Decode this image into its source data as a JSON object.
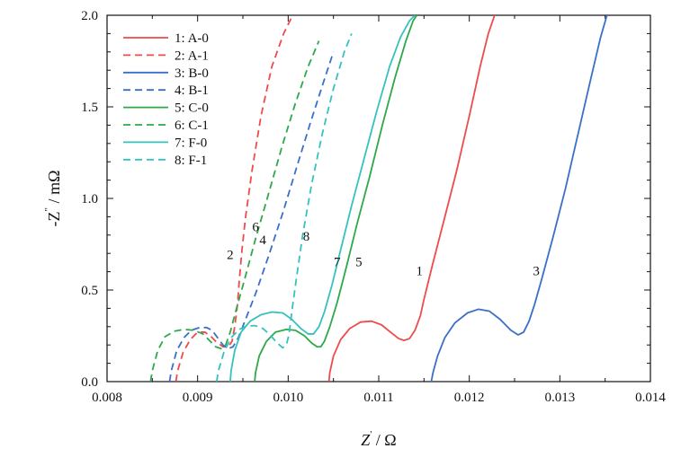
{
  "chart_data": {
    "type": "line",
    "xlabel_main": "Z",
    "xlabel_sup": "'",
    "xlabel_unit": " / Ω",
    "ylabel_main": "-Z",
    "ylabel_sup": "\"",
    "ylabel_unit": " / mΩ",
    "xlim": [
      0.008,
      0.014
    ],
    "ylim": [
      0.0,
      2.0
    ],
    "xticks": [
      "0.008",
      "0.009",
      "0.010",
      "0.011",
      "0.012",
      "0.013",
      "0.014"
    ],
    "yticks": [
      "0.0",
      "0.5",
      "1.0",
      "1.5",
      "2.0"
    ],
    "legend_position": "top-left",
    "series": [
      {
        "name": "1: A-0",
        "color": "#ee4b4b",
        "dash": "solid",
        "curve_label": "1",
        "x": [
          0.01045,
          0.01046,
          0.0105,
          0.01058,
          0.01068,
          0.0108,
          0.01092,
          0.01103,
          0.01113,
          0.01122,
          0.01128,
          0.01134,
          0.0114,
          0.01146,
          0.0115,
          0.0116,
          0.01172,
          0.01186,
          0.012,
          0.01212,
          0.01221,
          0.01228
        ],
        "y": [
          0.0,
          0.05,
          0.14,
          0.23,
          0.29,
          0.325,
          0.33,
          0.31,
          0.27,
          0.235,
          0.225,
          0.235,
          0.28,
          0.36,
          0.45,
          0.65,
          0.88,
          1.15,
          1.45,
          1.72,
          1.9,
          2.0
        ]
      },
      {
        "name": "2: A-1",
        "color": "#ee4b4b",
        "dash": "dashed",
        "curve_label": "2",
        "x": [
          0.00876,
          0.00878,
          0.00884,
          0.00892,
          0.009,
          0.00908,
          0.00914,
          0.0092,
          0.00928,
          0.00934,
          0.00938,
          0.00941,
          0.00944,
          0.00946,
          0.00949,
          0.00953,
          0.0096,
          0.0097,
          0.00982,
          0.00995,
          0.01005
        ],
        "y": [
          0.0,
          0.06,
          0.16,
          0.23,
          0.27,
          0.27,
          0.25,
          0.22,
          0.19,
          0.19,
          0.22,
          0.3,
          0.42,
          0.55,
          0.72,
          0.9,
          1.15,
          1.45,
          1.72,
          1.9,
          2.0
        ]
      },
      {
        "name": "3: B-0",
        "color": "#3a6fc9",
        "dash": "solid",
        "curve_label": "3",
        "x": [
          0.01158,
          0.0116,
          0.01165,
          0.01173,
          0.01184,
          0.01198,
          0.0121,
          0.01222,
          0.01234,
          0.01246,
          0.01254,
          0.0126,
          0.01266,
          0.01272,
          0.0128,
          0.01292,
          0.01306,
          0.0132,
          0.01334,
          0.01345,
          0.01352
        ],
        "y": [
          0.0,
          0.05,
          0.14,
          0.24,
          0.32,
          0.375,
          0.395,
          0.385,
          0.34,
          0.28,
          0.255,
          0.27,
          0.33,
          0.42,
          0.56,
          0.78,
          1.05,
          1.35,
          1.65,
          1.88,
          2.0
        ]
      },
      {
        "name": "4: B-1",
        "color": "#3a6fc9",
        "dash": "dashed",
        "curve_label": "4",
        "x": [
          0.00869,
          0.00871,
          0.00877,
          0.00885,
          0.00893,
          0.00902,
          0.0091,
          0.00916,
          0.00922,
          0.00928,
          0.00934,
          0.00939,
          0.00945,
          0.00953,
          0.00964,
          0.00978,
          0.00994,
          0.0101,
          0.01025,
          0.01038,
          0.0105
        ],
        "y": [
          0.0,
          0.06,
          0.17,
          0.24,
          0.28,
          0.295,
          0.295,
          0.28,
          0.24,
          0.2,
          0.18,
          0.19,
          0.24,
          0.34,
          0.48,
          0.68,
          0.92,
          1.18,
          1.42,
          1.62,
          1.8
        ]
      },
      {
        "name": "5: C-0",
        "color": "#2ea84a",
        "dash": "solid",
        "curve_label": "5",
        "x": [
          0.00963,
          0.00964,
          0.00968,
          0.00976,
          0.00986,
          0.00998,
          0.01008,
          0.01018,
          0.01026,
          0.01032,
          0.01036,
          0.0104,
          0.01046,
          0.01054,
          0.01064,
          0.01076,
          0.0109,
          0.01104,
          0.01118,
          0.0113,
          0.01138,
          0.01142
        ],
        "y": [
          0.0,
          0.05,
          0.14,
          0.22,
          0.27,
          0.285,
          0.28,
          0.25,
          0.21,
          0.19,
          0.19,
          0.22,
          0.3,
          0.43,
          0.62,
          0.86,
          1.12,
          1.4,
          1.66,
          1.86,
          1.97,
          2.0
        ]
      },
      {
        "name": "6: C-1",
        "color": "#2ea84a",
        "dash": "dashed",
        "curve_label": "6",
        "x": [
          0.00848,
          0.0085,
          0.00856,
          0.00864,
          0.00874,
          0.00885,
          0.00896,
          0.00906,
          0.00914,
          0.0092,
          0.00926,
          0.00931,
          0.00936,
          0.00943,
          0.00952,
          0.00964,
          0.00978,
          0.00993,
          0.01008,
          0.01022,
          0.01034
        ],
        "y": [
          0.0,
          0.06,
          0.17,
          0.245,
          0.275,
          0.285,
          0.28,
          0.26,
          0.22,
          0.19,
          0.18,
          0.2,
          0.27,
          0.4,
          0.56,
          0.78,
          1.02,
          1.28,
          1.52,
          1.72,
          1.86
        ]
      },
      {
        "name": "7: F-0",
        "color": "#35c2be",
        "dash": "solid",
        "curve_label": "7",
        "x": [
          0.00936,
          0.00937,
          0.00941,
          0.00948,
          0.00958,
          0.0097,
          0.00982,
          0.00994,
          0.01004,
          0.01014,
          0.01022,
          0.01028,
          0.01034,
          0.0104,
          0.01048,
          0.01058,
          0.0107,
          0.01084,
          0.01098,
          0.01112,
          0.01124,
          0.01134,
          0.0114
        ],
        "y": [
          0.0,
          0.06,
          0.17,
          0.27,
          0.33,
          0.365,
          0.38,
          0.375,
          0.34,
          0.29,
          0.26,
          0.26,
          0.3,
          0.38,
          0.52,
          0.72,
          0.96,
          1.22,
          1.48,
          1.72,
          1.88,
          1.97,
          2.0
        ]
      },
      {
        "name": "8: F-1",
        "color": "#35c2be",
        "dash": "dashed",
        "curve_label": "8",
        "x": [
          0.00921,
          0.00923,
          0.00929,
          0.00937,
          0.00946,
          0.00955,
          0.00964,
          0.00972,
          0.0098,
          0.00988,
          0.00994,
          0.00998,
          0.01001,
          0.01004,
          0.01009,
          0.01016,
          0.01026,
          0.01038,
          0.0105,
          0.01062,
          0.0107
        ],
        "y": [
          0.0,
          0.06,
          0.16,
          0.24,
          0.285,
          0.305,
          0.305,
          0.29,
          0.255,
          0.21,
          0.185,
          0.2,
          0.26,
          0.38,
          0.56,
          0.8,
          1.08,
          1.36,
          1.6,
          1.8,
          1.9
        ]
      }
    ]
  }
}
